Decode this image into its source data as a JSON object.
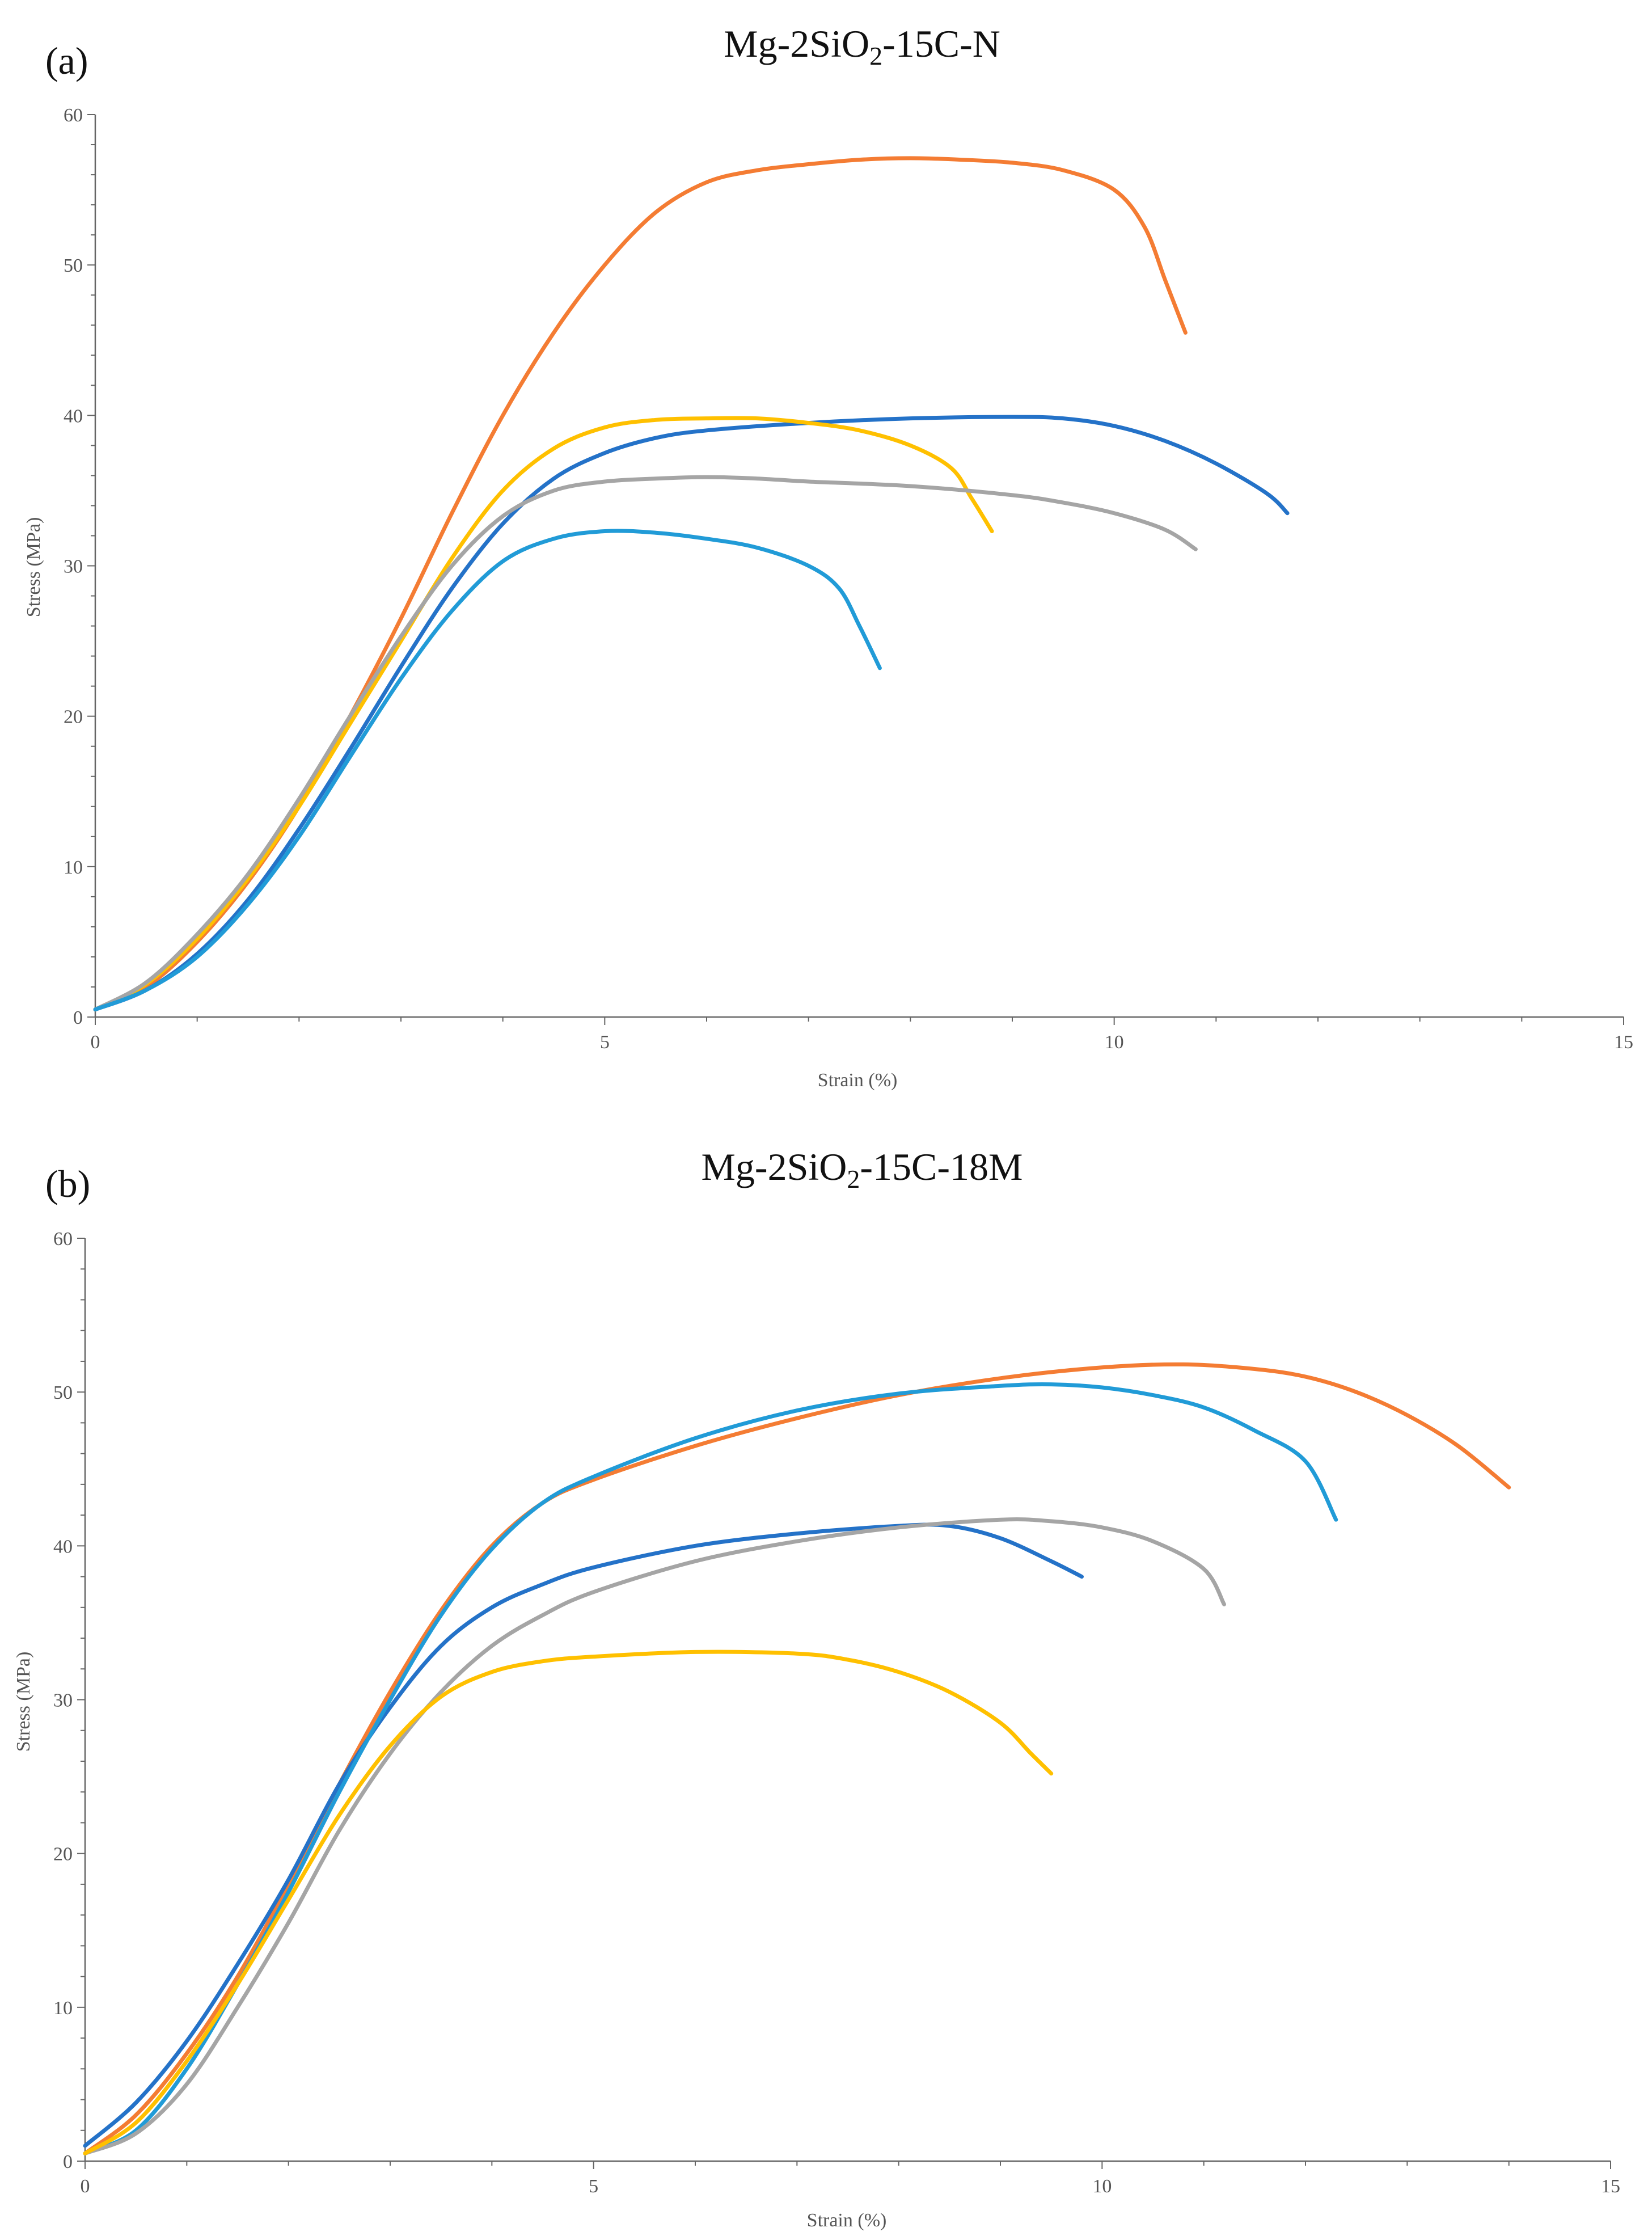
{
  "chart_data": [
    {
      "type": "line",
      "panel_label": "(a)",
      "title": "Mg-2SiO2-15C-N",
      "title_parts": {
        "prefix": "Mg-2SiO",
        "sub": "2",
        "suffix": "-15C-N"
      },
      "xlabel": "Strain (%)",
      "ylabel": "Stress (MPa)",
      "xlim": [
        0,
        15
      ],
      "ylim": [
        0,
        60
      ],
      "xticks": [
        0,
        5,
        10,
        15
      ],
      "yticks": [
        0,
        10,
        20,
        30,
        40,
        50,
        60
      ],
      "grid": false,
      "series": [
        {
          "name": "series-orange",
          "color": "#F47C33",
          "points": [
            [
              0,
              0.5
            ],
            [
              0.5,
              2
            ],
            [
              1,
              5
            ],
            [
              1.5,
              9
            ],
            [
              2,
              14
            ],
            [
              2.5,
              20
            ],
            [
              3,
              26.5
            ],
            [
              3.5,
              33.5
            ],
            [
              4,
              40
            ],
            [
              4.5,
              45.5
            ],
            [
              5,
              50
            ],
            [
              5.5,
              53.5
            ],
            [
              6,
              55.5
            ],
            [
              6.5,
              56.3
            ],
            [
              7,
              56.7
            ],
            [
              7.5,
              57
            ],
            [
              8,
              57.1
            ],
            [
              8.5,
              57
            ],
            [
              9,
              56.8
            ],
            [
              9.5,
              56.3
            ],
            [
              10,
              55
            ],
            [
              10.3,
              52.5
            ],
            [
              10.5,
              49
            ],
            [
              10.7,
              45.5
            ]
          ]
        },
        {
          "name": "series-blue",
          "color": "#2472C8",
          "points": [
            [
              0,
              0.5
            ],
            [
              0.5,
              1.8
            ],
            [
              1,
              4.2
            ],
            [
              1.5,
              7.8
            ],
            [
              2,
              12.5
            ],
            [
              2.5,
              17.8
            ],
            [
              3,
              23.3
            ],
            [
              3.5,
              28.5
            ],
            [
              4,
              32.8
            ],
            [
              4.5,
              35.8
            ],
            [
              5,
              37.5
            ],
            [
              5.5,
              38.5
            ],
            [
              6,
              39
            ],
            [
              7,
              39.5
            ],
            [
              8,
              39.8
            ],
            [
              9,
              39.9
            ],
            [
              9.5,
              39.8
            ],
            [
              10,
              39.3
            ],
            [
              10.5,
              38.3
            ],
            [
              11,
              36.8
            ],
            [
              11.5,
              34.8
            ],
            [
              11.7,
              33.5
            ]
          ]
        },
        {
          "name": "series-yellow",
          "color": "#FFC000",
          "points": [
            [
              0,
              0.5
            ],
            [
              0.5,
              2.2
            ],
            [
              1,
              5.2
            ],
            [
              1.5,
              9.2
            ],
            [
              2,
              14
            ],
            [
              2.5,
              19.5
            ],
            [
              3,
              25
            ],
            [
              3.5,
              30.5
            ],
            [
              4,
              35
            ],
            [
              4.5,
              37.8
            ],
            [
              5,
              39.2
            ],
            [
              5.5,
              39.7
            ],
            [
              6,
              39.8
            ],
            [
              6.5,
              39.8
            ],
            [
              7,
              39.5
            ],
            [
              7.5,
              39
            ],
            [
              8,
              38
            ],
            [
              8.4,
              36.5
            ],
            [
              8.6,
              34.5
            ],
            [
              8.8,
              32.3
            ]
          ]
        },
        {
          "name": "series-gray",
          "color": "#A5A5A5",
          "points": [
            [
              0,
              0.5
            ],
            [
              0.5,
              2.3
            ],
            [
              1,
              5.5
            ],
            [
              1.5,
              9.5
            ],
            [
              2,
              14.5
            ],
            [
              2.5,
              20
            ],
            [
              3,
              25.3
            ],
            [
              3.5,
              30
            ],
            [
              4,
              33.3
            ],
            [
              4.5,
              35
            ],
            [
              5,
              35.6
            ],
            [
              5.5,
              35.8
            ],
            [
              6,
              35.9
            ],
            [
              6.5,
              35.8
            ],
            [
              7,
              35.6
            ],
            [
              8,
              35.3
            ],
            [
              9,
              34.7
            ],
            [
              9.5,
              34.2
            ],
            [
              10,
              33.5
            ],
            [
              10.5,
              32.4
            ],
            [
              10.8,
              31.1
            ]
          ]
        },
        {
          "name": "series-light-blue",
          "color": "#219BD7",
          "points": [
            [
              0,
              0.5
            ],
            [
              0.5,
              1.8
            ],
            [
              1,
              4
            ],
            [
              1.5,
              7.5
            ],
            [
              2,
              12
            ],
            [
              2.5,
              17.3
            ],
            [
              3,
              22.5
            ],
            [
              3.5,
              27
            ],
            [
              4,
              30.3
            ],
            [
              4.5,
              31.8
            ],
            [
              5,
              32.3
            ],
            [
              5.5,
              32.2
            ],
            [
              6,
              31.8
            ],
            [
              6.5,
              31.2
            ],
            [
              7,
              30
            ],
            [
              7.3,
              28.5
            ],
            [
              7.5,
              26
            ],
            [
              7.7,
              23.2
            ]
          ]
        }
      ]
    },
    {
      "type": "line",
      "panel_label": "(b)",
      "title": "Mg-2SiO2-15C-18M",
      "title_parts": {
        "prefix": "Mg-2SiO",
        "sub": "2",
        "suffix": "-15C-18M"
      },
      "xlabel": "Strain (%)",
      "ylabel": "Stress (MPa)",
      "xlim": [
        0,
        15
      ],
      "ylim": [
        0,
        60
      ],
      "xticks": [
        0,
        5,
        10,
        15
      ],
      "yticks": [
        0,
        10,
        20,
        30,
        40,
        50,
        60
      ],
      "grid": false,
      "series": [
        {
          "name": "series-orange",
          "color": "#F47C33",
          "points": [
            [
              0,
              0.5
            ],
            [
              0.5,
              3
            ],
            [
              1,
              7
            ],
            [
              1.5,
              12
            ],
            [
              2,
              18
            ],
            [
              2.5,
              24.5
            ],
            [
              3,
              30.5
            ],
            [
              3.5,
              35.8
            ],
            [
              4,
              40
            ],
            [
              4.5,
              42.8
            ],
            [
              5,
              44.3
            ],
            [
              6,
              46.5
            ],
            [
              7,
              48.3
            ],
            [
              8,
              49.8
            ],
            [
              9,
              50.9
            ],
            [
              10,
              51.6
            ],
            [
              10.8,
              51.8
            ],
            [
              11.5,
              51.5
            ],
            [
              12,
              51
            ],
            [
              12.5,
              50
            ],
            [
              13,
              48.5
            ],
            [
              13.5,
              46.5
            ],
            [
              14,
              43.8
            ]
          ]
        },
        {
          "name": "series-blue",
          "color": "#2472C8",
          "points": [
            [
              0,
              1
            ],
            [
              0.5,
              3.8
            ],
            [
              1,
              7.8
            ],
            [
              1.5,
              12.8
            ],
            [
              2,
              18.3
            ],
            [
              2.5,
              24.5
            ],
            [
              3,
              29.5
            ],
            [
              3.5,
              33.5
            ],
            [
              4,
              36
            ],
            [
              4.5,
              37.5
            ],
            [
              5,
              38.6
            ],
            [
              6,
              40
            ],
            [
              7,
              40.8
            ],
            [
              8,
              41.3
            ],
            [
              8.5,
              41.3
            ],
            [
              9,
              40.5
            ],
            [
              9.5,
              39
            ],
            [
              9.8,
              38
            ]
          ]
        },
        {
          "name": "series-light-blue",
          "color": "#219BD7",
          "points": [
            [
              0,
              0.5
            ],
            [
              0.5,
              2
            ],
            [
              1,
              6
            ],
            [
              1.5,
              11.5
            ],
            [
              2,
              17.5
            ],
            [
              2.5,
              24
            ],
            [
              3,
              30
            ],
            [
              3.5,
              35.5
            ],
            [
              4,
              39.8
            ],
            [
              4.5,
              42.8
            ],
            [
              5,
              44.5
            ],
            [
              6,
              47
            ],
            [
              7,
              48.8
            ],
            [
              8,
              49.9
            ],
            [
              9,
              50.4
            ],
            [
              9.5,
              50.5
            ],
            [
              10,
              50.3
            ],
            [
              10.5,
              49.8
            ],
            [
              11,
              49
            ],
            [
              11.5,
              47.5
            ],
            [
              12,
              45.5
            ],
            [
              12.3,
              41.7
            ]
          ]
        },
        {
          "name": "series-gray",
          "color": "#A5A5A5",
          "points": [
            [
              0,
              0.5
            ],
            [
              0.5,
              1.8
            ],
            [
              1,
              5
            ],
            [
              1.5,
              10
            ],
            [
              2,
              15.5
            ],
            [
              2.5,
              21.5
            ],
            [
              3,
              26.5
            ],
            [
              3.5,
              30.5
            ],
            [
              4,
              33.5
            ],
            [
              4.5,
              35.5
            ],
            [
              5,
              37
            ],
            [
              6,
              39
            ],
            [
              7,
              40.3
            ],
            [
              8,
              41.2
            ],
            [
              9,
              41.7
            ],
            [
              9.5,
              41.6
            ],
            [
              10,
              41.2
            ],
            [
              10.5,
              40.3
            ],
            [
              11,
              38.5
            ],
            [
              11.2,
              36.2
            ]
          ]
        },
        {
          "name": "series-yellow",
          "color": "#FFC000",
          "points": [
            [
              0,
              0.5
            ],
            [
              0.5,
              2.5
            ],
            [
              1,
              6.5
            ],
            [
              1.5,
              11.5
            ],
            [
              2,
              17
            ],
            [
              2.5,
              22.5
            ],
            [
              3,
              27
            ],
            [
              3.5,
              30.2
            ],
            [
              4,
              31.8
            ],
            [
              4.5,
              32.5
            ],
            [
              5,
              32.8
            ],
            [
              6,
              33.1
            ],
            [
              7,
              33
            ],
            [
              7.5,
              32.6
            ],
            [
              8,
              31.8
            ],
            [
              8.5,
              30.5
            ],
            [
              9,
              28.5
            ],
            [
              9.3,
              26.5
            ],
            [
              9.5,
              25.2
            ]
          ]
        }
      ]
    }
  ]
}
